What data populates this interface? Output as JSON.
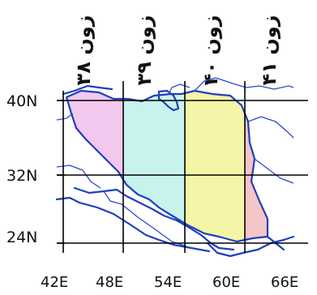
{
  "map": {
    "zones": [
      {
        "label": "زون ۳۸",
        "color": "#f2c8ef"
      },
      {
        "label": "زون ۳۹",
        "color": "#c8f2ec"
      },
      {
        "label": "زون ۴۰",
        "color": "#f4f5a6"
      },
      {
        "label": "زون ۴۱",
        "color": "#f4c6c6"
      }
    ],
    "latitude_labels": [
      "40N",
      "32N",
      "24N"
    ],
    "longitude_labels": [
      "42E",
      "48E",
      "54E",
      "60E",
      "66E"
    ],
    "colors": {
      "coastline": "#1f3fbf",
      "grid": "#000000",
      "background": "#ffffff"
    }
  }
}
